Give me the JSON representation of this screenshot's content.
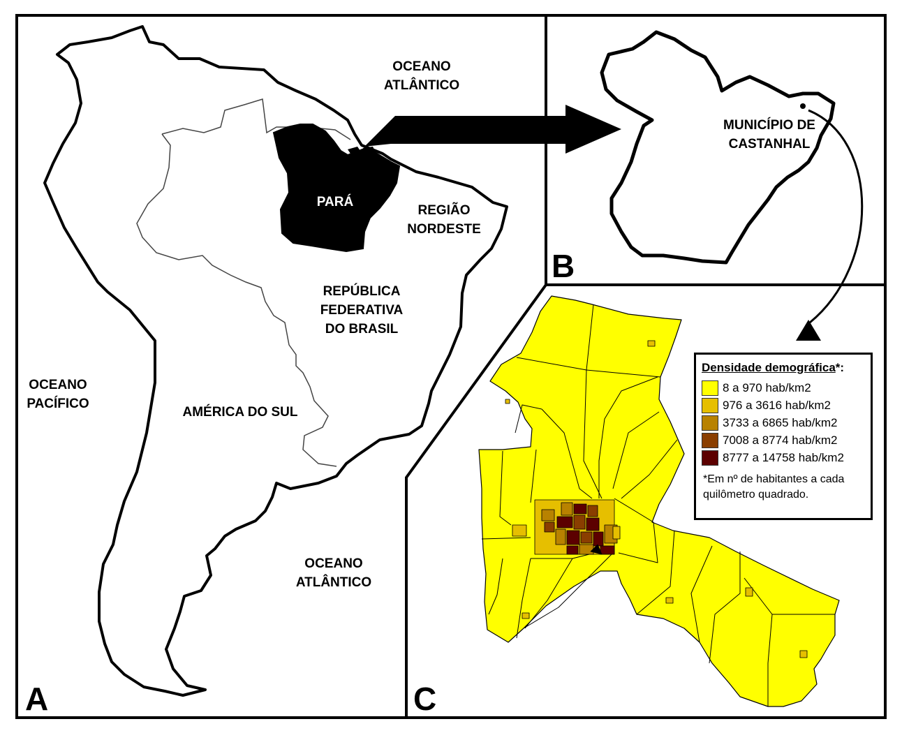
{
  "panel_a": {
    "letter": "A",
    "state_label": "PARÁ",
    "region_ne": "REGIÃO\nNORDESTE",
    "brazil": "REPÚBLICA\nFEDERATIVA\nDO BRASIL",
    "continent": "AMÉRICA DO SUL",
    "ocean_atl_north": "OCEANO\nATLÂNTICO",
    "ocean_atl_south": "OCEANO\nATLÂNTICO",
    "ocean_pacific": "OCEANO\nPACÍFICO"
  },
  "panel_b": {
    "letter": "B",
    "municipality": "MUNICÍPIO DE\nCASTANHAL"
  },
  "panel_c": {
    "letter": "C",
    "legend": {
      "title": "Densidade demográfica",
      "title_suffix": "*:",
      "classes": [
        {
          "label": "8 a 970 hab/km2",
          "color": "#ffff00"
        },
        {
          "label": "976 a 3616 hab/km2",
          "color": "#e6bf00"
        },
        {
          "label": "3733 a 6865 hab/km2",
          "color": "#b88200"
        },
        {
          "label": "7008 a 8774 hab/km2",
          "color": "#8a3e00"
        },
        {
          "label": "8777 a 14758 hab/km2",
          "color": "#5c0000"
        }
      ],
      "note": "*Em nº de habitantes a cada quilômetro quadrado."
    }
  },
  "colors": {
    "frame": "#000000",
    "para_fill": "#000000",
    "land": "#ffffff",
    "low_density": "#ffff00"
  }
}
